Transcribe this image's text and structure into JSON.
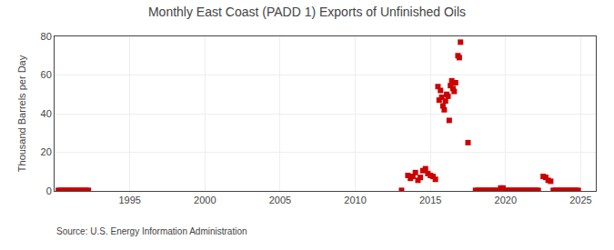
{
  "chart_data": {
    "type": "scatter",
    "title": "Monthly East Coast (PADD 1) Exports of Unfinished Oils",
    "ylabel": "Thousand Barrels per Day",
    "annotation": "Source: U.S. Energy Information Administration",
    "color": "#cc0000",
    "marker": "square",
    "grid": true,
    "xlim": [
      1990,
      2026
    ],
    "xticks": [
      1995,
      2000,
      2005,
      2010,
      2015,
      2020,
      2025
    ],
    "ylim": [
      0,
      80
    ],
    "yticks": [
      0,
      20,
      40,
      60,
      80
    ],
    "x": [
      1990.25,
      1990.42,
      1990.58,
      1990.75,
      1990.92,
      1991.08,
      1991.25,
      1991.42,
      1991.58,
      1991.75,
      1991.92,
      1992.08,
      1992.25,
      2013.08,
      2013.5,
      2013.67,
      2013.83,
      2014.0,
      2014.17,
      2014.33,
      2014.5,
      2014.67,
      2014.83,
      2015.0,
      2015.17,
      2015.33,
      2015.5,
      2015.58,
      2015.67,
      2015.75,
      2015.83,
      2015.92,
      2016.0,
      2016.08,
      2016.17,
      2016.25,
      2016.33,
      2016.42,
      2016.5,
      2016.58,
      2016.67,
      2016.83,
      2016.92,
      2017.0,
      2017.5,
      2018.0,
      2018.17,
      2018.33,
      2018.5,
      2018.67,
      2018.83,
      2019.0,
      2019.17,
      2019.33,
      2019.5,
      2019.67,
      2019.83,
      2020.0,
      2020.17,
      2020.33,
      2020.5,
      2020.67,
      2020.83,
      2021.0,
      2021.17,
      2021.33,
      2021.5,
      2021.67,
      2021.83,
      2022.0,
      2022.17,
      2022.5,
      2022.67,
      2022.83,
      2023.0,
      2023.17,
      2023.33,
      2023.5,
      2023.67,
      2023.83,
      2024.0,
      2024.17,
      2024.33,
      2024.5,
      2024.67,
      2024.83
    ],
    "values": [
      0.3,
      0.3,
      0.3,
      0.3,
      0.3,
      0.3,
      0.3,
      0.3,
      0.3,
      0.3,
      0.3,
      0.3,
      0.3,
      0.3,
      8.0,
      6.5,
      7.5,
      9.5,
      5.5,
      7.0,
      10.5,
      11.5,
      9.0,
      8.0,
      7.5,
      6.0,
      54.0,
      47.0,
      52.0,
      48.5,
      44.0,
      42.0,
      46.5,
      50.0,
      49.0,
      36.5,
      54.5,
      57.0,
      53.0,
      51.5,
      56.0,
      70.0,
      69.0,
      77.0,
      25.0,
      0.3,
      0.3,
      0.3,
      0.3,
      0.3,
      0.3,
      0.3,
      0.3,
      0.3,
      0.3,
      1.5,
      1.5,
      0.3,
      0.3,
      0.3,
      0.3,
      0.3,
      0.3,
      0.3,
      0.3,
      0.3,
      0.3,
      0.3,
      0.3,
      0.3,
      0.3,
      7.5,
      7.0,
      5.5,
      5.0,
      0.3,
      0.3,
      0.3,
      0.3,
      0.3,
      0.3,
      0.3,
      0.3,
      0.3,
      0.3,
      0.3
    ]
  }
}
